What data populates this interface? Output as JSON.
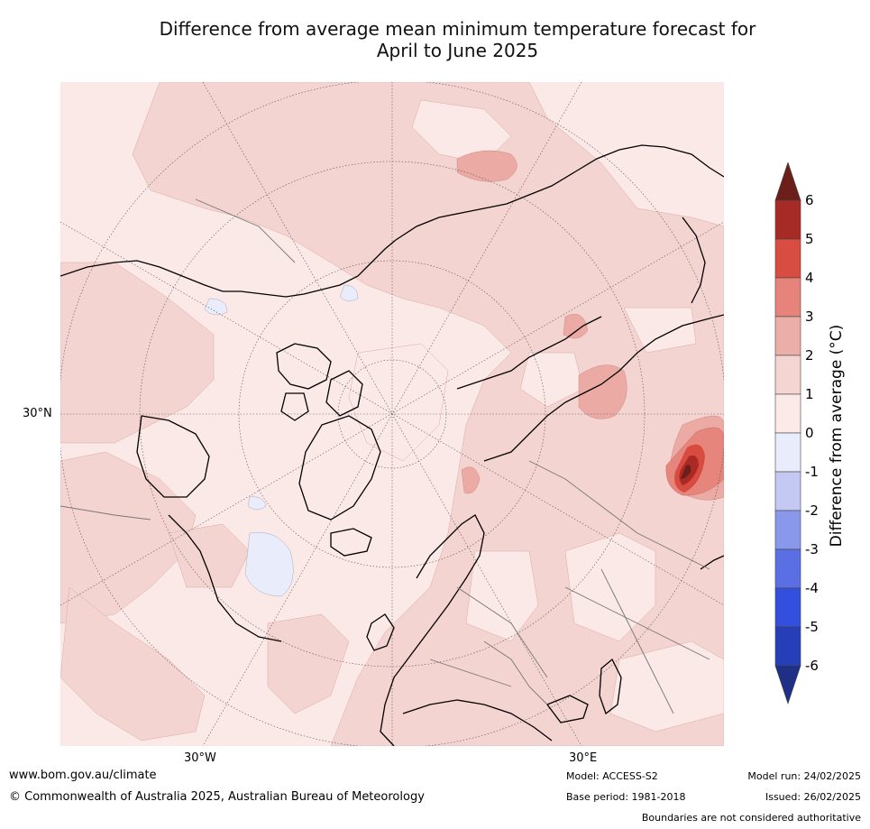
{
  "title_line1": "Difference from average mean minimum temperature forecast for",
  "title_line2": "April to June 2025",
  "map": {
    "projection": "north-polar-stereographic",
    "lat_label": "30°N",
    "lon_labels": {
      "west": "30°W",
      "east": "30°E"
    },
    "colors": {
      "land_bg": "#f7e0de",
      "warm_0_1": "#fbe9e7",
      "warm_1_2": "#f4d4d1",
      "warm_2_3": "#ebaaa4",
      "warm_3_4": "#e6857c",
      "warm_4_5": "#d84b40",
      "warm_5_6": "#a92a24",
      "cool_0_1": "#e9ecfa"
    }
  },
  "colorbar": {
    "label": "Difference from average (°C)",
    "ticks": [
      "6",
      "5",
      "4",
      "3",
      "2",
      "1",
      "0",
      "-1",
      "-2",
      "-3",
      "-4",
      "-5",
      "-6"
    ],
    "bands": [
      {
        "range": [
          5,
          6
        ],
        "color": "#a62a26"
      },
      {
        "range": [
          4,
          5
        ],
        "color": "#d84c42"
      },
      {
        "range": [
          3,
          4
        ],
        "color": "#e6847b"
      },
      {
        "range": [
          2,
          3
        ],
        "color": "#ecaea8"
      },
      {
        "range": [
          1,
          2
        ],
        "color": "#f5d5d2"
      },
      {
        "range": [
          0,
          1
        ],
        "color": "#fbeae8"
      },
      {
        "range": [
          -1,
          0
        ],
        "color": "#e9ecfb"
      },
      {
        "range": [
          -2,
          -1
        ],
        "color": "#c3c9f3"
      },
      {
        "range": [
          -3,
          -2
        ],
        "color": "#8a98ec"
      },
      {
        "range": [
          -4,
          -3
        ],
        "color": "#5b6fe4"
      },
      {
        "range": [
          -5,
          -4
        ],
        "color": "#3250dd"
      },
      {
        "range": [
          -6,
          -5
        ],
        "color": "#263fb8"
      }
    ],
    "top_arrow_color": "#6b1e1a",
    "bottom_arrow_color": "#1f2f85"
  },
  "footer": {
    "website": "www.bom.gov.au/climate",
    "copyright": "© Commonwealth of Australia 2025, Australian Bureau of Meteorology",
    "model": "Model: ACCESS-S2",
    "base_period": "Base period: 1981-2018",
    "model_run": "Model run: 24/02/2025",
    "issued": "Issued: 26/02/2025",
    "disclaimer": "Boundaries are not considered authoritative"
  }
}
